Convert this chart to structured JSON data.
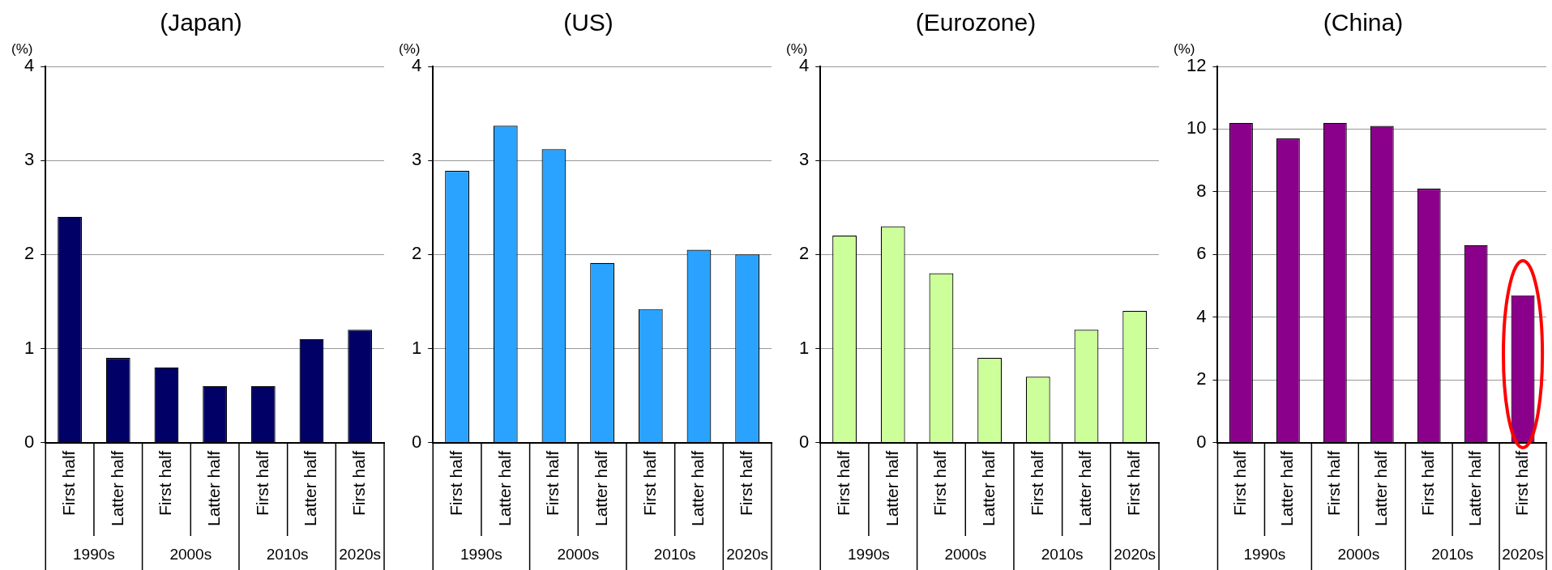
{
  "chart_data": [
    {
      "type": "bar",
      "title": "(Japan)",
      "ylabel": "(%)",
      "categories": [
        "First half",
        "Latter half",
        "First half",
        "Latter half",
        "First half",
        "Latter half",
        "First half"
      ],
      "values": [
        2.4,
        0.9,
        0.8,
        0.6,
        0.6,
        1.1,
        1.2
      ],
      "color": "#000066",
      "ylim": [
        0,
        4
      ],
      "yticks": [
        0,
        1,
        2,
        3,
        4
      ],
      "grid": "y",
      "legend": false,
      "annotations": [
        "1990s",
        "2000s",
        "2010s",
        "2020s"
      ]
    },
    {
      "type": "bar",
      "title": "(US)",
      "ylabel": "(%)",
      "categories": [
        "First half",
        "Latter half",
        "First half",
        "Latter half",
        "First half",
        "Latter half",
        "First half"
      ],
      "values": [
        2.89,
        3.37,
        3.12,
        1.91,
        1.42,
        2.05,
        2.0
      ],
      "color": "#29a3ff",
      "ylim": [
        0,
        4
      ],
      "yticks": [
        0,
        1,
        2,
        3,
        4
      ],
      "grid": "y",
      "legend": false,
      "annotations": [
        "1990s",
        "2000s",
        "2010s",
        "2020s"
      ]
    },
    {
      "type": "bar",
      "title": "(Eurozone)",
      "ylabel": "(%)",
      "categories": [
        "First half",
        "Latter half",
        "First half",
        "Latter half",
        "First half",
        "Latter half",
        "First half"
      ],
      "values": [
        2.2,
        2.3,
        1.8,
        0.9,
        0.7,
        1.2,
        1.4
      ],
      "color": "#ccff99",
      "ylim": [
        0,
        4
      ],
      "yticks": [
        0,
        1,
        2,
        3,
        4
      ],
      "grid": "y",
      "legend": false,
      "annotations": [
        "1990s",
        "2000s",
        "2010s",
        "2020s"
      ]
    },
    {
      "type": "bar",
      "title": "(China)",
      "ylabel": "(%)",
      "categories": [
        "First half",
        "Latter half",
        "First half",
        "Latter half",
        "First half",
        "Latter half",
        "First half"
      ],
      "values": [
        10.2,
        9.7,
        10.2,
        10.1,
        8.1,
        6.3,
        4.7
      ],
      "color": "#8b008b",
      "ylim": [
        0,
        12
      ],
      "yticks": [
        0,
        2,
        4,
        6,
        8,
        10,
        12
      ],
      "grid": "y",
      "legend": false,
      "annotations": [
        "1990s",
        "2000s",
        "2010s",
        "2020s"
      ]
    }
  ]
}
